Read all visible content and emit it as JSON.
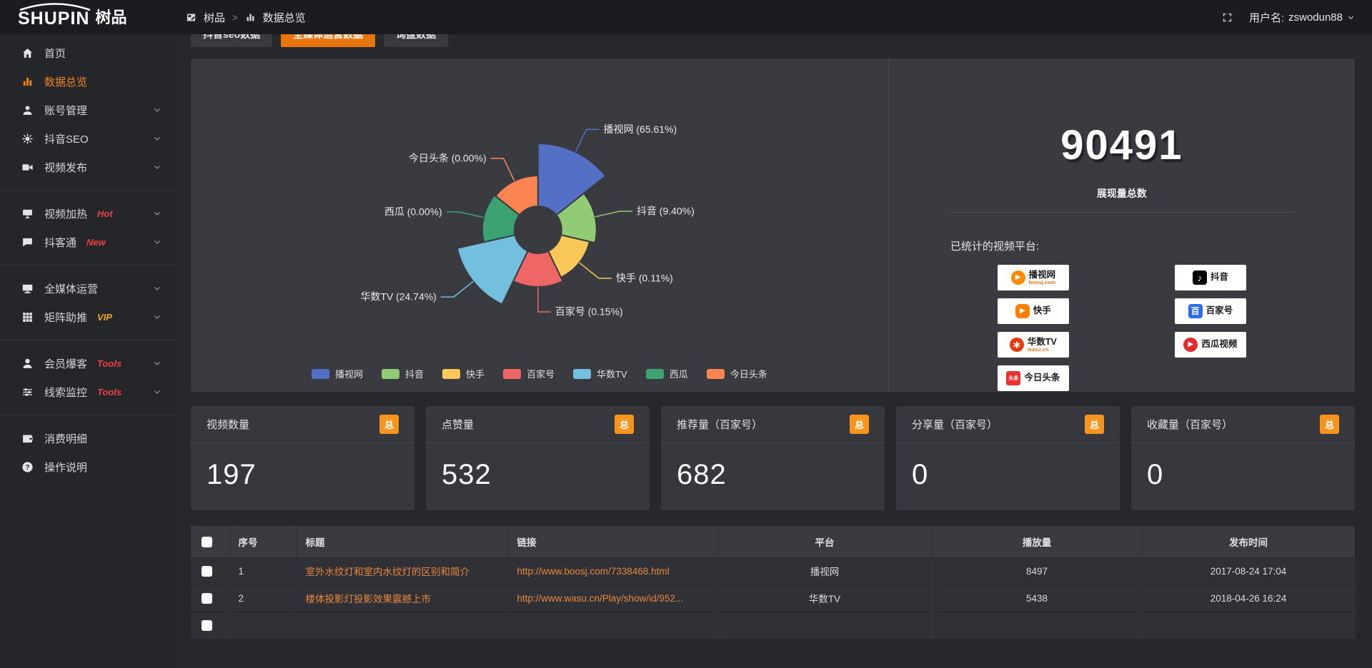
{
  "topbar": {
    "logo_text": "SHUPIN",
    "logo_cn": "树品",
    "breadcrumb": [
      {
        "icon": "board-icon",
        "label": "树品"
      },
      {
        "icon": "chart-icon",
        "label": "数据总览"
      }
    ],
    "breadcrumb_sep": ">",
    "username_label": "用户名:",
    "username": "zswodun88"
  },
  "sidebar": {
    "items": [
      {
        "icon": "home",
        "label": "首页"
      },
      {
        "icon": "chart",
        "label": "数据总览",
        "active": true
      },
      {
        "icon": "user",
        "label": "账号管理",
        "expand": true
      },
      {
        "icon": "gear",
        "label": "抖音SEO",
        "expand": true
      },
      {
        "icon": "video",
        "label": "视频发布",
        "expand": true,
        "divider_after": true
      },
      {
        "icon": "screen",
        "label": "视频加热",
        "tag": "Hot",
        "tag_color": "#ee4040",
        "expand": true
      },
      {
        "icon": "chat",
        "label": "抖客通",
        "tag": "New",
        "tag_color": "#ee4040",
        "expand": true,
        "divider_after": true
      },
      {
        "icon": "monitor",
        "label": "全媒体运营",
        "expand": true
      },
      {
        "icon": "grid",
        "label": "矩阵助推",
        "tag": "VIP",
        "tag_color": "#f0a818",
        "expand": true,
        "divider_after": true
      },
      {
        "icon": "member",
        "label": "会员爆客",
        "tag": "Tools",
        "tag_color": "#ee4040",
        "expand": true
      },
      {
        "icon": "sliders",
        "label": "线索监控",
        "tag": "Tools",
        "tag_color": "#ee4040",
        "expand": true,
        "divider_after": true
      },
      {
        "icon": "wallet",
        "label": "消费明细"
      },
      {
        "icon": "question",
        "label": "操作说明"
      }
    ]
  },
  "tabs": [
    {
      "label": "抖音seo数据",
      "active": false
    },
    {
      "label": "全媒体运营数据",
      "active": true
    },
    {
      "label": "询盘数据",
      "active": false
    }
  ],
  "chart_data": {
    "type": "pie",
    "rose": true,
    "legend_position": "bottom",
    "inner_radius": 33,
    "series": [
      {
        "name": "播视网",
        "percent": 65.61,
        "label": "播视网 (65.61%)",
        "color": "#5470c6",
        "radius": 121
      },
      {
        "name": "抖音",
        "percent": 9.4,
        "label": "抖音 (9.40%)",
        "color": "#91cc75",
        "radius": 82
      },
      {
        "name": "快手",
        "percent": 0.11,
        "label": "快手 (0.11%)",
        "color": "#fac858",
        "radius": 74
      },
      {
        "name": "百家号",
        "percent": 0.15,
        "label": "百家号 (0.15%)",
        "color": "#ee6666",
        "radius": 80
      },
      {
        "name": "华数TV",
        "percent": 24.74,
        "label": "华数TV (24.74%)",
        "color": "#73c0de",
        "radius": 116
      },
      {
        "name": "西瓜",
        "percent": 0.0,
        "label": "西瓜 (0.00%)",
        "color": "#3ba272",
        "radius": 78
      },
      {
        "name": "今日头条",
        "percent": 0.0,
        "label": "今日头条 (0.00%)",
        "color": "#fc8452",
        "radius": 76
      }
    ]
  },
  "summary": {
    "total": "90491",
    "total_label": "展现量总数",
    "platforms_label": "已统计的视频平台:",
    "platforms": [
      {
        "icon": "boosj",
        "glyph": "▶",
        "name": "播视网",
        "sub": "boosj.com"
      },
      {
        "icon": "kuaishou",
        "glyph": "▶",
        "name": "快手",
        "sub": ""
      },
      {
        "icon": "wasu",
        "glyph": "∗",
        "name": "华数TV",
        "sub": "wasu.cn"
      },
      {
        "icon": "toutiao",
        "glyph": "头条",
        "name": "今日头条",
        "sub": ""
      },
      {
        "icon": "douyin",
        "glyph": "♪",
        "name": "抖音",
        "sub": ""
      },
      {
        "icon": "baijia",
        "glyph": "百",
        "name": "百家号",
        "sub": ""
      },
      {
        "icon": "xigua",
        "glyph": "▶",
        "name": "西瓜视频",
        "sub": ""
      }
    ]
  },
  "stat_cards": [
    {
      "title": "视频数量",
      "badge": "总",
      "value": "197"
    },
    {
      "title": "点赞量",
      "badge": "总",
      "value": "532"
    },
    {
      "title": "推荐量（百家号）",
      "badge": "总",
      "value": "682"
    },
    {
      "title": "分享量（百家号）",
      "badge": "总",
      "value": "0"
    },
    {
      "title": "收藏量（百家号）",
      "badge": "总",
      "value": "0"
    }
  ],
  "table": {
    "headers": [
      "序号",
      "标题",
      "链接",
      "平台",
      "播放量",
      "发布时间"
    ],
    "rows": [
      {
        "index": "1",
        "title": "室外水纹灯和室内水纹灯的区别和简介",
        "link": "http://www.boosj.com/7338468.html",
        "platform": "播视网",
        "views": "8497",
        "time": "2017-08-24 17:04"
      },
      {
        "index": "2",
        "title": "楼体投影灯投影效果震撼上市",
        "link": "http://www.wasu.cn/Play/show/id/952...",
        "platform": "华数TV",
        "views": "5438",
        "time": "2018-04-26 16:24"
      },
      {
        "index": "",
        "title": "",
        "link": "",
        "platform": "",
        "views": "",
        "time": ""
      }
    ]
  },
  "colors": {
    "accent_orange": "#e8740e",
    "badge_orange": "#f7941d",
    "link_orange": "#e8873c",
    "panel_bg": "#3a3b40",
    "page_bg": "#27282c"
  }
}
